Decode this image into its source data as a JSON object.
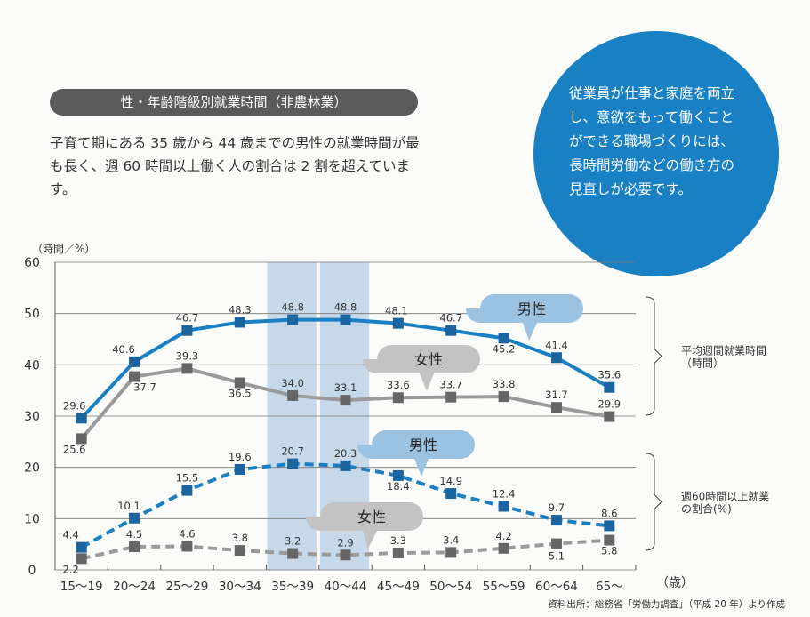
{
  "header": {
    "title": "性・年齢階級別就業時間（非農林業）",
    "lead": "子育て期にある 35 歳から 44 歳までの男性の就業時間が最も長く、週 60 時間以上働く人の割合は 2 割を超えています。",
    "message": "従業員が仕事と家庭を両立し、意欲をもって働くことができる職場づくりには、長時間労働などの働き方の見直しが必要です。"
  },
  "source": "資料出所：総務省「労働力調査」（平成 20 年）より作成",
  "colors": {
    "male": "#1a80c4",
    "female": "#9a9a9a",
    "highlight": "#c7d9e8",
    "circle": "#1a80c4"
  },
  "chart_data": {
    "type": "line",
    "ylabel": "（時間／%）",
    "xlabel": "（歳）",
    "ylim": [
      0,
      60
    ],
    "yticks": [
      0,
      10,
      20,
      30,
      40,
      50,
      60
    ],
    "grid": true,
    "categories": [
      "15～19",
      "20～24",
      "25～29",
      "30～34",
      "35～39",
      "40～44",
      "45～49",
      "50～54",
      "55～59",
      "60～64",
      "65～"
    ],
    "highlighted_categories": [
      "35～39",
      "40～44"
    ],
    "series": [
      {
        "name": "男性",
        "group": "平均週間就業時間（時間）",
        "style": "solid",
        "color": "#1a80c4",
        "values": [
          29.6,
          40.6,
          46.7,
          48.3,
          48.8,
          48.8,
          48.1,
          46.7,
          45.2,
          41.4,
          35.6
        ]
      },
      {
        "name": "女性",
        "group": "平均週間就業時間（時間）",
        "style": "solid",
        "color": "#9a9a9a",
        "values": [
          25.6,
          37.7,
          39.3,
          36.5,
          34.0,
          33.1,
          33.6,
          33.7,
          33.8,
          31.7,
          29.9
        ]
      },
      {
        "name": "男性",
        "group": "週60時間以上就業の割合(%)",
        "style": "dashed",
        "color": "#1a80c4",
        "values": [
          4.4,
          10.1,
          15.5,
          19.6,
          20.7,
          20.3,
          18.4,
          14.9,
          12.4,
          9.7,
          8.6
        ]
      },
      {
        "name": "女性",
        "group": "週60時間以上就業の割合(%)",
        "style": "dashed",
        "color": "#9a9a9a",
        "values": [
          2.2,
          4.5,
          4.6,
          3.8,
          3.2,
          2.9,
          3.3,
          3.4,
          4.2,
          5.1,
          5.8
        ]
      }
    ],
    "brace_labels": [
      [
        "平均週間就業時間",
        "（時間）"
      ],
      [
        "週60時間以上就業",
        "の割合(%)"
      ]
    ]
  }
}
